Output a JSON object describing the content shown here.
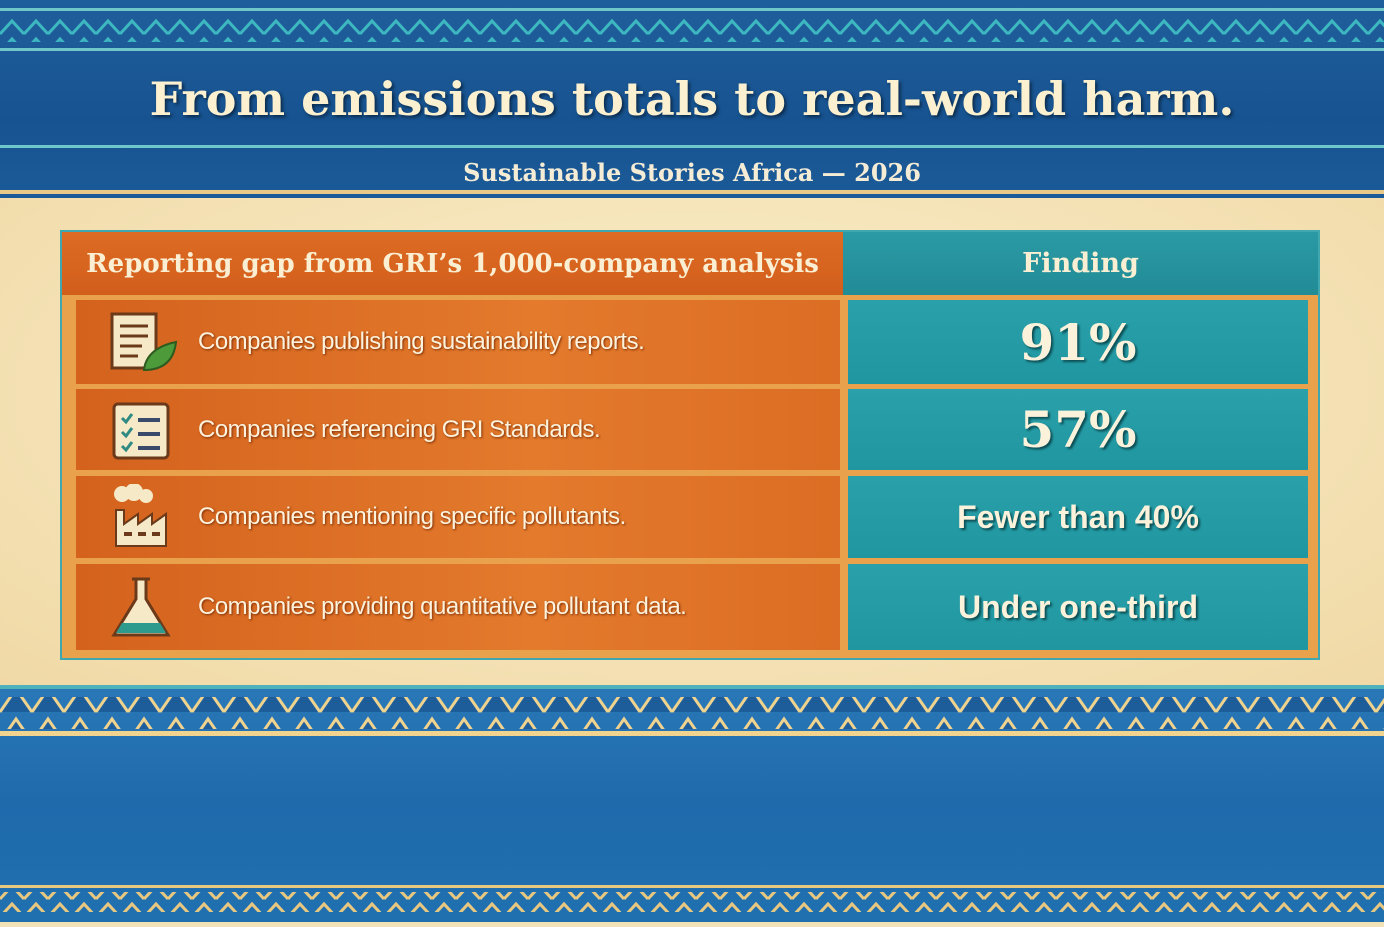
{
  "header": {
    "title": "From emissions totals to real-world harm.",
    "subtitle": "Sustainable Stories Africa — 2026"
  },
  "table": {
    "columns": [
      "Reporting gap from GRI’s 1,000-company analysis",
      "Finding"
    ],
    "rows": [
      [
        "Companies publishing sustainability reports.",
        "91%"
      ],
      [
        "Companies referencing GRI Standards.",
        "57%"
      ],
      [
        "Companies mentioning specific pollutants.",
        "Fewer than 40%"
      ],
      [
        "Companies providing quantitative pollutant data.",
        "Under one-third"
      ]
    ]
  }
}
